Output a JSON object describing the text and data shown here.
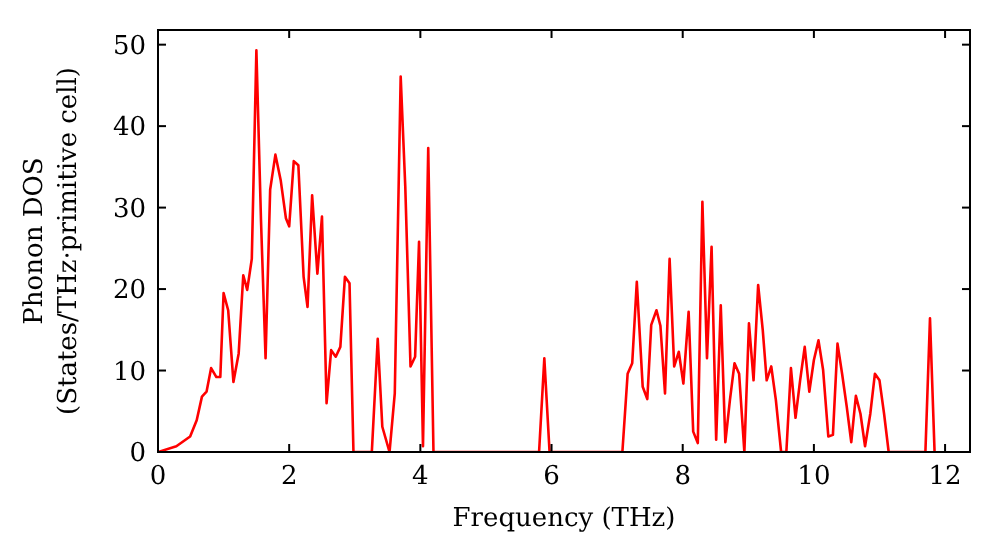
{
  "chart_data": {
    "type": "line",
    "xlabel": "Frequency (THz)",
    "ylabel": "Phonon DOS\n(States/THz·primitive cell)",
    "xlim": [
      0,
      12.38
    ],
    "ylim": [
      0,
      51.8
    ],
    "xticks": [
      0,
      2,
      4,
      6,
      8,
      10,
      12
    ],
    "yticks": [
      0,
      10,
      20,
      30,
      40,
      50
    ],
    "grid": false,
    "marker": "none",
    "line_style": "solid",
    "series": [
      {
        "color": "#ff0000",
        "x": [
          0,
          0.28,
          0.49,
          0.59,
          0.67,
          0.74,
          0.81,
          0.89,
          0.95,
          1.0,
          1.07,
          1.15,
          1.23,
          1.3,
          1.36,
          1.43,
          1.5,
          1.57,
          1.64,
          1.71,
          1.79,
          1.87,
          1.95,
          2.0,
          2.07,
          2.14,
          2.22,
          2.28,
          2.35,
          2.43,
          2.5,
          2.57,
          2.64,
          2.71,
          2.78,
          2.85,
          2.92,
          2.98,
          3.26,
          3.35,
          3.42,
          3.53,
          3.61,
          3.7,
          3.77,
          3.85,
          3.92,
          3.98,
          4.04,
          4.12,
          4.2,
          5.81,
          5.89,
          5.97,
          7.08,
          7.16,
          7.23,
          7.3,
          7.39,
          7.46,
          7.52,
          7.6,
          7.66,
          7.73,
          7.8,
          7.87,
          7.94,
          8.01,
          8.09,
          8.16,
          8.23,
          8.3,
          8.37,
          8.44,
          8.51,
          8.58,
          8.65,
          8.72,
          8.79,
          8.86,
          8.94,
          9.01,
          9.08,
          9.15,
          9.22,
          9.28,
          9.35,
          9.42,
          9.5,
          9.58,
          9.65,
          9.72,
          9.79,
          9.86,
          9.93,
          10.0,
          10.07,
          10.14,
          10.22,
          10.29,
          10.36,
          10.43,
          10.5,
          10.57,
          10.64,
          10.71,
          10.78,
          10.86,
          10.93,
          11.0,
          11.07,
          11.14,
          11.7,
          11.77,
          11.84
        ],
        "values": [
          0,
          0.7,
          1.9,
          3.9,
          6.8,
          7.4,
          10.3,
          9.2,
          9.2,
          19.5,
          17.4,
          8.6,
          12.1,
          21.7,
          19.9,
          23.7,
          49.3,
          28.5,
          11.5,
          32.2,
          36.5,
          33.4,
          28.7,
          27.7,
          35.7,
          35.2,
          21.5,
          17.8,
          31.5,
          21.9,
          28.9,
          6.0,
          12.5,
          11.7,
          12.9,
          21.5,
          20.7,
          0,
          0,
          13.9,
          3.1,
          0,
          7.2,
          46.1,
          32.6,
          10.5,
          11.7,
          25.8,
          0.7,
          37.3,
          0,
          0,
          11.5,
          0,
          0,
          9.6,
          10.9,
          20.9,
          8.0,
          6.5,
          15.6,
          17.4,
          15.5,
          7.2,
          23.7,
          10.5,
          12.3,
          8.4,
          17.2,
          2.5,
          1.1,
          30.7,
          11.5,
          25.2,
          1.5,
          18.0,
          1.2,
          6.4,
          10.9,
          9.6,
          0,
          15.8,
          8.8,
          20.5,
          15.0,
          8.8,
          10.5,
          6.4,
          0,
          0,
          10.3,
          4.2,
          8.8,
          12.9,
          7.4,
          11.3,
          13.7,
          10.1,
          1.9,
          2.1,
          13.3,
          9.6,
          5.6,
          1.2,
          6.9,
          4.7,
          0.7,
          4.7,
          9.6,
          8.8,
          4.7,
          0,
          0,
          16.4,
          0
        ]
      }
    ]
  }
}
